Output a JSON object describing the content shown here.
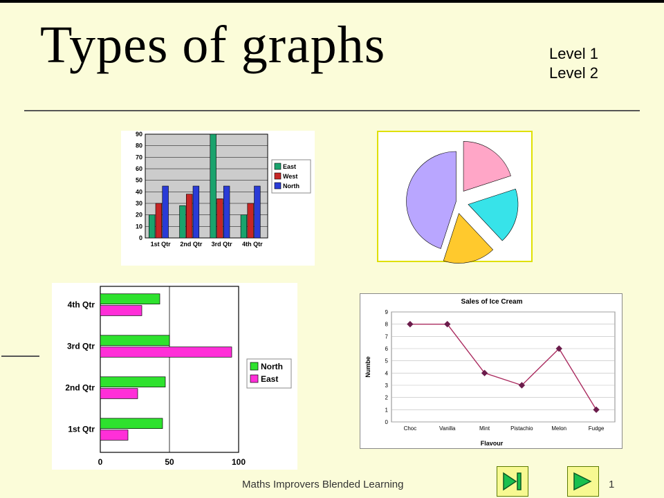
{
  "title": "Types of graphs",
  "levels": [
    "Level 1",
    "Level 2"
  ],
  "footer": {
    "text": "Maths Improvers Blended Learning",
    "page": "1"
  },
  "bar_vert": {
    "type": "bar-grouped-vertical",
    "categories": [
      "1st Qtr",
      "2nd Qtr",
      "3rd Qtr",
      "4th Qtr"
    ],
    "series": [
      {
        "name": "East",
        "color": "#1aa36d",
        "values": [
          20,
          28,
          90,
          20
        ]
      },
      {
        "name": "West",
        "color": "#c62626",
        "values": [
          30,
          38,
          34,
          30
        ]
      },
      {
        "name": "North",
        "color": "#2a3bd6",
        "values": [
          45,
          45,
          45,
          45
        ]
      }
    ],
    "ylim": [
      0,
      90
    ],
    "ytick_step": 10,
    "plot_bg": "#cccccc",
    "panel_bg": "#ffffff",
    "grid_color": "#000000",
    "axis_fontsize": 9
  },
  "bar_horz": {
    "type": "bar-grouped-horizontal",
    "categories": [
      "1st Qtr",
      "2nd Qtr",
      "3rd Qtr",
      "4th Qtr"
    ],
    "series": [
      {
        "name": "North",
        "color": "#2ee22e",
        "values": [
          45,
          47,
          50,
          43
        ]
      },
      {
        "name": "East",
        "color": "#ff2fd8",
        "values": [
          20,
          27,
          95,
          30
        ]
      }
    ],
    "xlim": [
      0,
      100
    ],
    "xtick_step": 50,
    "plot_bg": "#ffffff",
    "grid_color": "#000000",
    "axis_fontsize": 12
  },
  "pie": {
    "type": "pie-exploded",
    "border_color": "#dfe000",
    "panel_bg": "#ffffff",
    "slices": [
      {
        "color": "#ffa6c7",
        "value": 20,
        "explode": 18
      },
      {
        "color": "#37e3e9",
        "value": 18,
        "explode": 18
      },
      {
        "color": "#ffc92d",
        "value": 17,
        "explode": 18
      },
      {
        "color": "#b9a6ff",
        "value": 45,
        "explode": 0
      }
    ]
  },
  "line": {
    "type": "line",
    "title": "Sales of Ice Cream",
    "title_fontsize": 10,
    "xlabel": "Flavour",
    "ylabel": "Numbe",
    "label_fontsize": 9,
    "categories": [
      "Choc",
      "Vanilla",
      "Mint",
      "Pistachio",
      "Melon",
      "Fudge"
    ],
    "values": [
      8,
      8,
      4,
      3,
      6,
      1
    ],
    "line_color": "#aa2b5f",
    "marker": "diamond",
    "marker_color": "#6b1c4b",
    "ylim": [
      0,
      9
    ],
    "ytick_step": 1,
    "plot_bg": "#ffffff",
    "grid_color": "#bbbbbb",
    "panel_border": "#888888"
  },
  "nav": {
    "btn_bg": "#f7f992",
    "btn_border": "#5a7a00",
    "arrow_color": "#19c04e",
    "arrow_stroke": "#0b5a24"
  }
}
